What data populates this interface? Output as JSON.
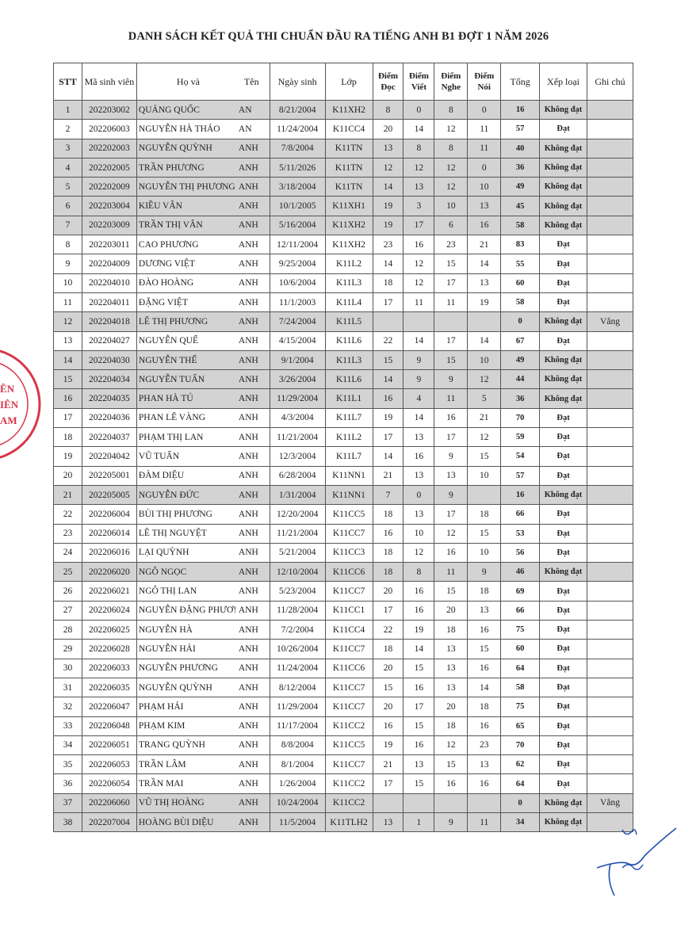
{
  "title": "DANH SÁCH KẾT QUẢ THI CHUẨN ĐẦU RA TIẾNG ANH B1 ĐỢT 1 NĂM 2026",
  "headers": {
    "stt": "STT",
    "ma": "Mã sinh viên",
    "ho": "Họ và",
    "ten": "Tên",
    "ngay": "Ngày sinh",
    "lop": "Lớp",
    "doc": "Điểm Đọc",
    "viet": "Điểm Viết",
    "nghe": "Điểm Nghe",
    "noi": "Điểm Nói",
    "tong": "Tổng",
    "xeploai": "Xếp loại",
    "ghichu": "Ghi chú"
  },
  "colors": {
    "fail_row": "#d3d3d3",
    "stamp": "#d8364a",
    "signature": "#1f4fb0"
  },
  "rows": [
    [
      "1",
      "202203002",
      "QUẢNG QUỐC",
      "AN",
      "8/21/2004",
      "K11XH2",
      "8",
      "0",
      "8",
      "0",
      "16",
      "Không đạt",
      ""
    ],
    [
      "2",
      "202206003",
      "NGUYỄN HÀ THẢO",
      "AN",
      "11/24/2004",
      "K11CC4",
      "20",
      "14",
      "12",
      "11",
      "57",
      "Đạt",
      ""
    ],
    [
      "3",
      "202202003",
      "NGUYỄN QUỲNH",
      "ANH",
      "7/8/2004",
      "K11TN",
      "13",
      "8",
      "8",
      "11",
      "40",
      "Không đạt",
      ""
    ],
    [
      "4",
      "202202005",
      "TRẦN PHƯƠNG",
      "ANH",
      "5/11/2026",
      "K11TN",
      "12",
      "12",
      "12",
      "0",
      "36",
      "Không đạt",
      ""
    ],
    [
      "5",
      "202202009",
      "NGUYỄN THỊ PHƯƠNG",
      "ANH",
      "3/18/2004",
      "K11TN",
      "14",
      "13",
      "12",
      "10",
      "49",
      "Không đạt",
      ""
    ],
    [
      "6",
      "202203004",
      "KIỀU VÂN",
      "ANH",
      "10/1/2005",
      "K11XH1",
      "19",
      "3",
      "10",
      "13",
      "45",
      "Không đạt",
      ""
    ],
    [
      "7",
      "202203009",
      "TRẦN THỊ VÂN",
      "ANH",
      "5/16/2004",
      "K11XH2",
      "19",
      "17",
      "6",
      "16",
      "58",
      "Không đạt",
      ""
    ],
    [
      "8",
      "202203011",
      "CAO PHƯƠNG",
      "ANH",
      "12/11/2004",
      "K11XH2",
      "23",
      "16",
      "23",
      "21",
      "83",
      "Đạt",
      ""
    ],
    [
      "9",
      "202204009",
      "DƯƠNG VIỆT",
      "ANH",
      "9/25/2004",
      "K11L2",
      "14",
      "12",
      "15",
      "14",
      "55",
      "Đạt",
      ""
    ],
    [
      "10",
      "202204010",
      "ĐÀO HOÀNG",
      "ANH",
      "10/6/2004",
      "K11L3",
      "18",
      "12",
      "17",
      "13",
      "60",
      "Đạt",
      ""
    ],
    [
      "11",
      "202204011",
      "ĐẶNG VIỆT",
      "ANH",
      "11/1/2003",
      "K11L4",
      "17",
      "11",
      "11",
      "19",
      "58",
      "Đạt",
      ""
    ],
    [
      "12",
      "202204018",
      "LÊ THỊ PHƯƠNG",
      "ANH",
      "7/24/2004",
      "K11L5",
      "",
      "",
      "",
      "",
      "0",
      "Không đạt",
      "Vắng"
    ],
    [
      "13",
      "202204027",
      "NGUYỄN QUẾ",
      "ANH",
      "4/15/2004",
      "K11L6",
      "22",
      "14",
      "17",
      "14",
      "67",
      "Đạt",
      ""
    ],
    [
      "14",
      "202204030",
      "NGUYỄN THẾ",
      "ANH",
      "9/1/2004",
      "K11L3",
      "15",
      "9",
      "15",
      "10",
      "49",
      "Không đạt",
      ""
    ],
    [
      "15",
      "202204034",
      "NGUYỄN TUẤN",
      "ANH",
      "3/26/2004",
      "K11L6",
      "14",
      "9",
      "9",
      "12",
      "44",
      "Không đạt",
      ""
    ],
    [
      "16",
      "202204035",
      "PHAN HÀ TÚ",
      "ANH",
      "11/29/2004",
      "K11L1",
      "16",
      "4",
      "11",
      "5",
      "36",
      "Không đạt",
      ""
    ],
    [
      "17",
      "202204036",
      "PHAN LÊ VÀNG",
      "ANH",
      "4/3/2004",
      "K11L7",
      "19",
      "14",
      "16",
      "21",
      "70",
      "Đạt",
      ""
    ],
    [
      "18",
      "202204037",
      "PHẠM THỊ LAN",
      "ANH",
      "11/21/2004",
      "K11L2",
      "17",
      "13",
      "17",
      "12",
      "59",
      "Đạt",
      ""
    ],
    [
      "19",
      "202204042",
      "VŨ TUẤN",
      "ANH",
      "12/3/2004",
      "K11L7",
      "14",
      "16",
      "9",
      "15",
      "54",
      "Đạt",
      ""
    ],
    [
      "20",
      "202205001",
      "ĐÀM DIỆU",
      "ANH",
      "6/28/2004",
      "K11NN1",
      "21",
      "13",
      "13",
      "10",
      "57",
      "Đạt",
      ""
    ],
    [
      "21",
      "202205005",
      "NGUYỄN ĐỨC",
      "ANH",
      "1/31/2004",
      "K11NN1",
      "7",
      "0",
      "9",
      "",
      "16",
      "Không đạt",
      ""
    ],
    [
      "22",
      "202206004",
      "BÙI THỊ PHƯƠNG",
      "ANH",
      "12/20/2004",
      "K11CC5",
      "18",
      "13",
      "17",
      "18",
      "66",
      "Đạt",
      ""
    ],
    [
      "23",
      "202206014",
      "LÊ THỊ NGUYỆT",
      "ANH",
      "11/21/2004",
      "K11CC7",
      "16",
      "10",
      "12",
      "15",
      "53",
      "Đạt",
      ""
    ],
    [
      "24",
      "202206016",
      "LẠI QUỲNH",
      "ANH",
      "5/21/2004",
      "K11CC3",
      "18",
      "12",
      "16",
      "10",
      "56",
      "Đạt",
      ""
    ],
    [
      "25",
      "202206020",
      "NGÔ NGỌC",
      "ANH",
      "12/10/2004",
      "K11CC6",
      "18",
      "8",
      "11",
      "9",
      "46",
      "Không đạt",
      ""
    ],
    [
      "26",
      "202206021",
      "NGÔ THỊ LAN",
      "ANH",
      "5/23/2004",
      "K11CC7",
      "20",
      "16",
      "15",
      "18",
      "69",
      "Đạt",
      ""
    ],
    [
      "27",
      "202206024",
      "NGUYỄN ĐẶNG PHƯƠ!",
      "ANH",
      "11/28/2004",
      "K11CC1",
      "17",
      "16",
      "20",
      "13",
      "66",
      "Đạt",
      ""
    ],
    [
      "28",
      "202206025",
      "NGUYỄN HÀ",
      "ANH",
      "7/2/2004",
      "K11CC4",
      "22",
      "19",
      "18",
      "16",
      "75",
      "Đạt",
      ""
    ],
    [
      "29",
      "202206028",
      "NGUYỄN HẢI",
      "ANH",
      "10/26/2004",
      "K11CC7",
      "18",
      "14",
      "13",
      "15",
      "60",
      "Đạt",
      ""
    ],
    [
      "30",
      "202206033",
      "NGUYỄN PHƯƠNG",
      "ANH",
      "11/24/2004",
      "K11CC6",
      "20",
      "15",
      "13",
      "16",
      "64",
      "Đạt",
      ""
    ],
    [
      "31",
      "202206035",
      "NGUYỄN QUỲNH",
      "ANH",
      "8/12/2004",
      "K11CC7",
      "15",
      "16",
      "13",
      "14",
      "58",
      "Đạt",
      ""
    ],
    [
      "32",
      "202206047",
      "PHẠM HẢI",
      "ANH",
      "11/29/2004",
      "K11CC7",
      "20",
      "17",
      "20",
      "18",
      "75",
      "Đạt",
      ""
    ],
    [
      "33",
      "202206048",
      "PHẠM KIM",
      "ANH",
      "11/17/2004",
      "K11CC2",
      "16",
      "15",
      "18",
      "16",
      "65",
      "Đạt",
      ""
    ],
    [
      "34",
      "202206051",
      "TRANG QUỲNH",
      "ANH",
      "8/8/2004",
      "K11CC5",
      "19",
      "16",
      "12",
      "23",
      "70",
      "Đạt",
      ""
    ],
    [
      "35",
      "202206053",
      "TRẦN LÂM",
      "ANH",
      "8/1/2004",
      "K11CC7",
      "21",
      "13",
      "15",
      "13",
      "62",
      "Đạt",
      ""
    ],
    [
      "36",
      "202206054",
      "TRẦN MAI",
      "ANH",
      "1/26/2004",
      "K11CC2",
      "17",
      "15",
      "16",
      "16",
      "64",
      "Đạt",
      ""
    ],
    [
      "37",
      "202206060",
      "VŨ THỊ HOÀNG",
      "ANH",
      "10/24/2004",
      "K11CC2",
      "",
      "",
      "",
      "",
      "0",
      "Không đạt",
      "Vắng"
    ],
    [
      "38",
      "202207004",
      "HOÀNG BÙI DIỆU",
      "ANH",
      "11/5/2004",
      "K11TLH2",
      "13",
      "1",
      "9",
      "11",
      "34",
      "Không đạt",
      ""
    ]
  ]
}
